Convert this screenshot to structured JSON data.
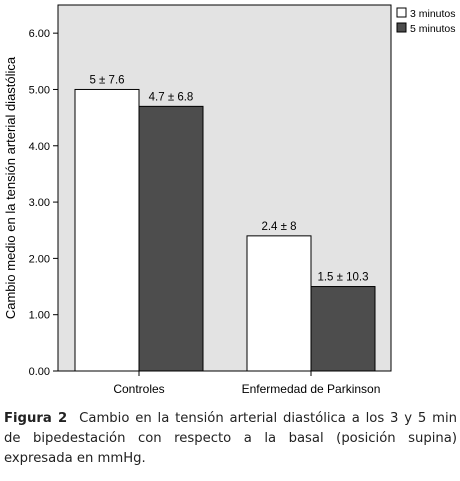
{
  "chart_data": {
    "type": "bar",
    "categories": [
      "Controles",
      "Enfermedad de Parkinson"
    ],
    "series": [
      {
        "name": "3 minutos",
        "values": [
          5.0,
          2.4
        ],
        "labels": [
          "5 ± 7.6",
          "2.4 ± 8"
        ],
        "color": "#ffffff"
      },
      {
        "name": "5 minutos",
        "values": [
          4.7,
          1.5
        ],
        "labels": [
          "4.7 ± 6.8",
          "1.5 ± 10.3"
        ],
        "color": "#4d4d4d"
      }
    ],
    "ylabel": "Cambio medio en la tensión arterial diastólica",
    "xlabel": "",
    "ylim": [
      0,
      6.5
    ],
    "yticks": [
      "0.00",
      "1.00",
      "2.00",
      "3.00",
      "4.00",
      "5.00",
      "6.00"
    ],
    "plot_background": "#e3e3e3",
    "grid": false,
    "legend_position": "top-right"
  },
  "caption": {
    "figure_label": "Figura 2",
    "text": "Cambio en la tensión arterial diastólica a los 3 y 5 min de bipedestación con respecto a la basal (posición supina) expresada en mmHg."
  }
}
